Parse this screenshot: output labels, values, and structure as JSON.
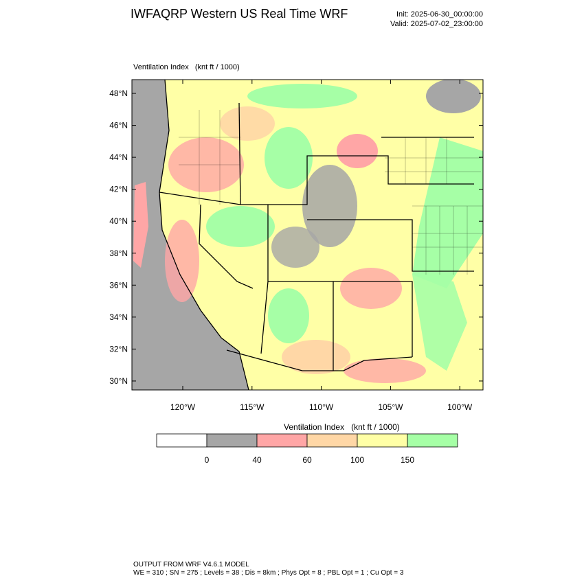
{
  "header": {
    "title": "IWFAQRP Western US Real Time WRF",
    "init": "Init: 2025-06-30_00:00:00",
    "valid": "Valid: 2025-07-02_23:00:00"
  },
  "map": {
    "field_label": "Ventilation Index   (knt ft / 1000)",
    "lat_ticks": [
      "48°N",
      "46°N",
      "44°N",
      "42°N",
      "40°N",
      "38°N",
      "36°N",
      "34°N",
      "32°N",
      "30°N"
    ],
    "lon_ticks": [
      "120°W",
      "115°W",
      "110°W",
      "105°W",
      "100°W"
    ]
  },
  "colorbar": {
    "title": "Ventilation Index   (knt ft / 1000)",
    "labels": [
      "0",
      "40",
      "60",
      "100",
      "150"
    ],
    "colors": [
      "#ffffff",
      "#a6a6a6",
      "#ffa6a6",
      "#ffd7a6",
      "#ffffa6",
      "#a6ffa6"
    ]
  },
  "footer": {
    "line1": "OUTPUT FROM WRF V4.6.1 MODEL",
    "line2": "WE = 310 ; SN = 275 ; Levels = 38 ; Dis = 8km ; Phys Opt = 8 ; PBL Opt = 1 ; Cu Opt = 3"
  }
}
